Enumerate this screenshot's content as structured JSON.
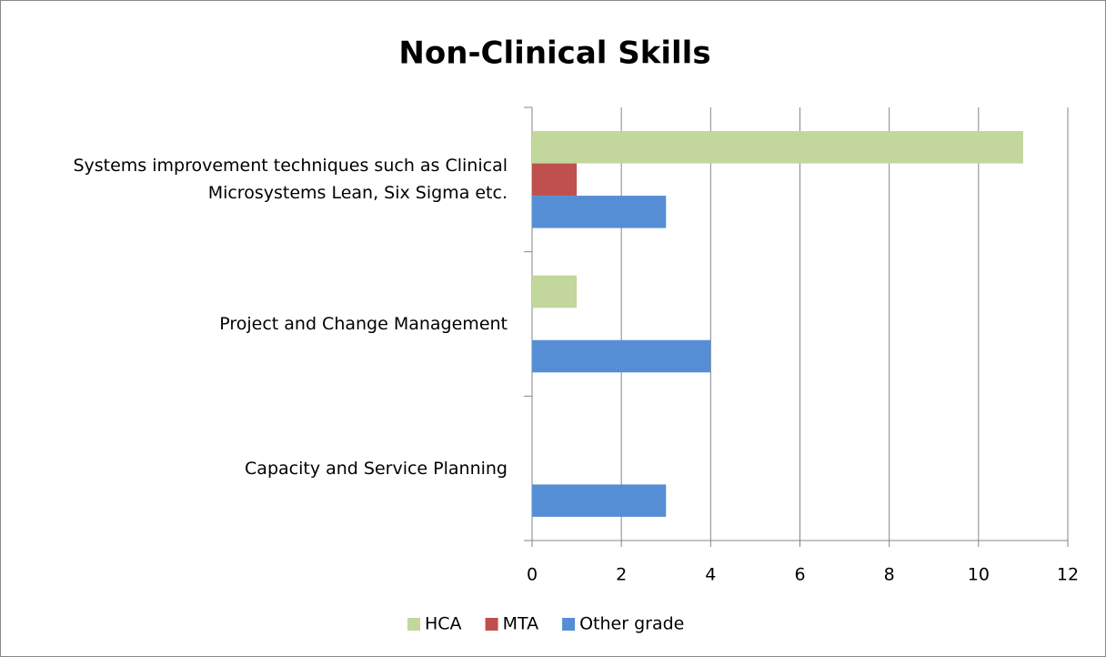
{
  "chart_data": {
    "type": "hbar",
    "title": "Non-Clinical Skills",
    "categories": [
      "Systems improvement techniques such as Clinical Microsystems Lean, Six Sigma etc.",
      "Project and Change Management",
      "Capacity and Service Planning"
    ],
    "series": [
      {
        "name": "HCA",
        "color": "#c3d69b",
        "values": [
          11,
          1,
          0
        ]
      },
      {
        "name": "MTA",
        "color": "#c0504d",
        "values": [
          1,
          0,
          0
        ]
      },
      {
        "name": "Other grade",
        "color": "#558ed5",
        "values": [
          3,
          4,
          3
        ]
      }
    ],
    "xlim": [
      0,
      12
    ],
    "xticks": [
      0,
      2,
      4,
      6,
      8,
      10,
      12
    ],
    "grid": true,
    "legend": "bottom"
  }
}
